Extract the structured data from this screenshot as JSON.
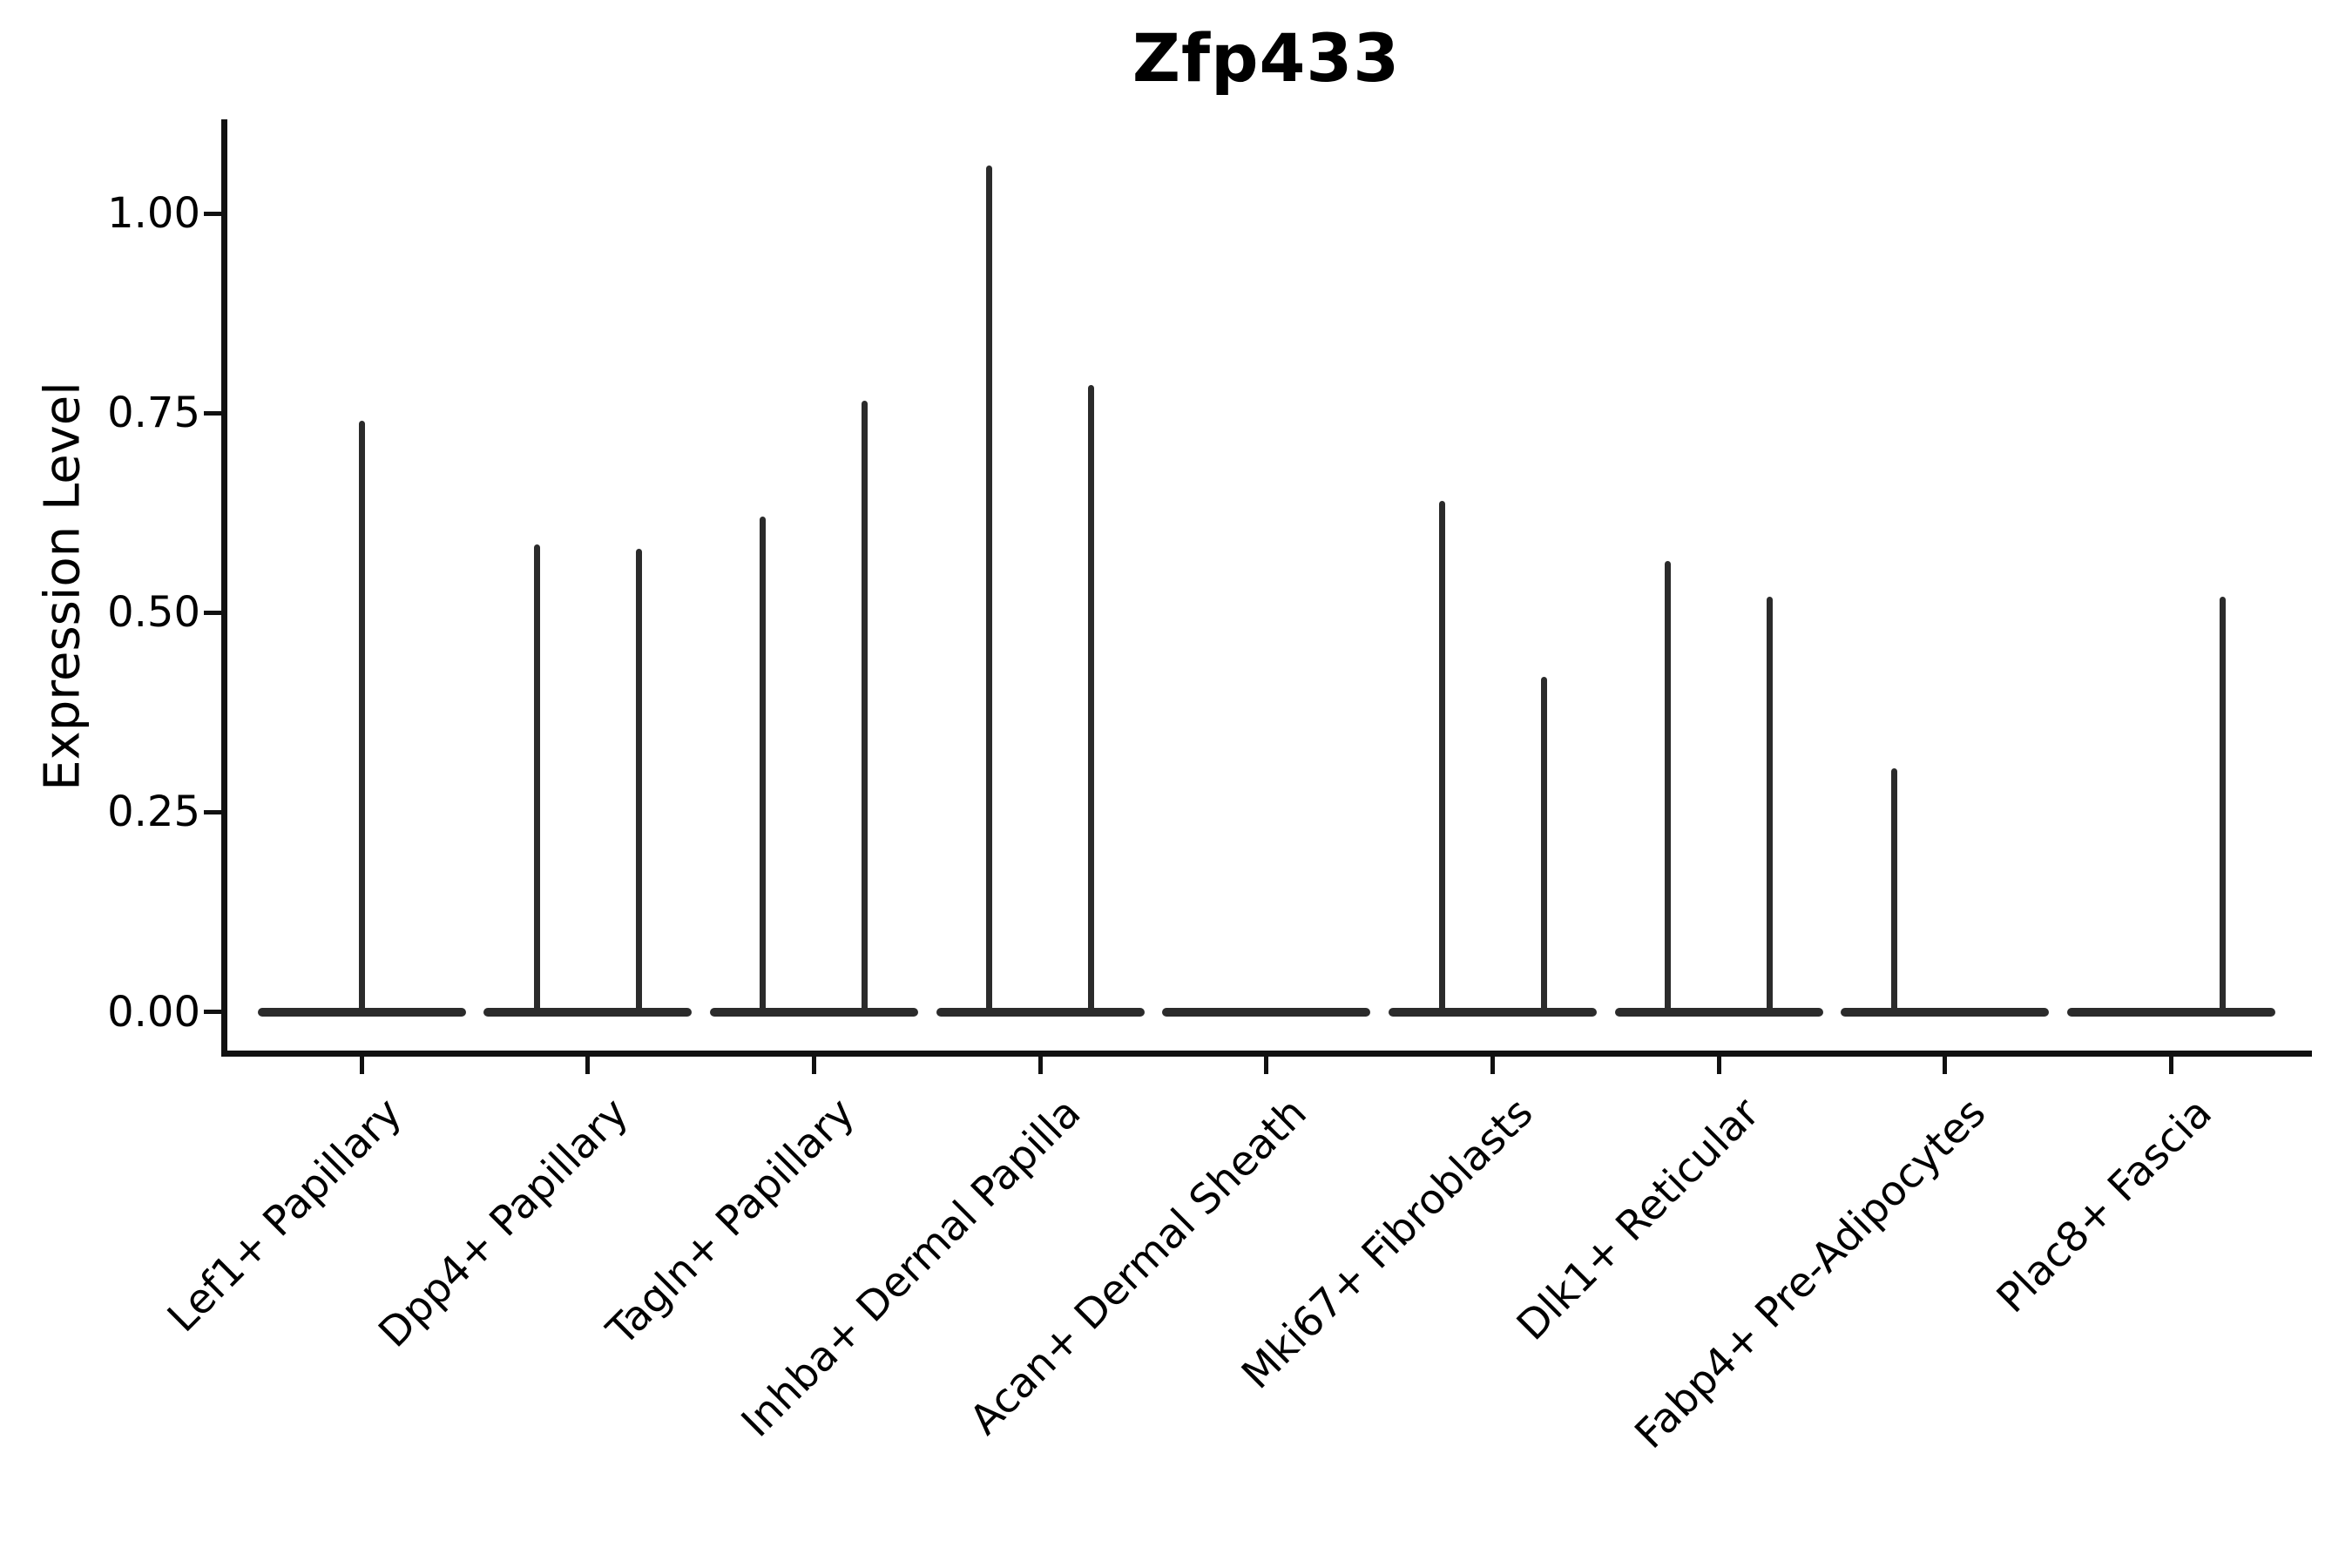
{
  "chart_data": {
    "type": "violin",
    "title": "Zfp433",
    "ylabel": "Expression Level",
    "xlabel": "",
    "grid": false,
    "legend": "none",
    "ylim": [
      -0.05,
      1.12
    ],
    "yticks": [
      {
        "label": "0.00",
        "value": 0.0
      },
      {
        "label": "0.25",
        "value": 0.25
      },
      {
        "label": "0.50",
        "value": 0.5
      },
      {
        "label": "0.75",
        "value": 0.75
      },
      {
        "label": "1.00",
        "value": 1.0
      }
    ],
    "violin_color": "#2b2b2b",
    "note": "Violins are collapsed flat at 0 expression; thin spikes mark maximum expression tails",
    "categories": [
      {
        "label": "Lef1+ Papillary",
        "spikes": [
          {
            "pos": "center",
            "value": 0.74
          }
        ]
      },
      {
        "label": "Dpp4+ Papillary",
        "spikes": [
          {
            "pos": "left",
            "value": 0.585
          },
          {
            "pos": "right",
            "value": 0.58
          }
        ]
      },
      {
        "label": "Tagln+ Papillary",
        "spikes": [
          {
            "pos": "left",
            "value": 0.62
          },
          {
            "pos": "right",
            "value": 0.765
          }
        ]
      },
      {
        "label": "Inhba+ Dermal Papilla",
        "spikes": [
          {
            "pos": "left",
            "value": 1.06
          },
          {
            "pos": "right",
            "value": 0.785
          }
        ]
      },
      {
        "label": "Acan+ Dermal Sheath",
        "spikes": []
      },
      {
        "label": "Mki67+ Fibroblasts",
        "spikes": [
          {
            "pos": "left",
            "value": 0.64
          },
          {
            "pos": "right",
            "value": 0.42
          }
        ]
      },
      {
        "label": "Dlk1+ Reticular",
        "spikes": [
          {
            "pos": "left",
            "value": 0.565
          },
          {
            "pos": "right",
            "value": 0.52
          }
        ]
      },
      {
        "label": "Fabp4+ Pre-Adipocytes",
        "spikes": [
          {
            "pos": "left",
            "value": 0.305
          }
        ]
      },
      {
        "label": "Plac8+ Fascia",
        "spikes": [
          {
            "pos": "right",
            "value": 0.52
          }
        ]
      }
    ]
  }
}
